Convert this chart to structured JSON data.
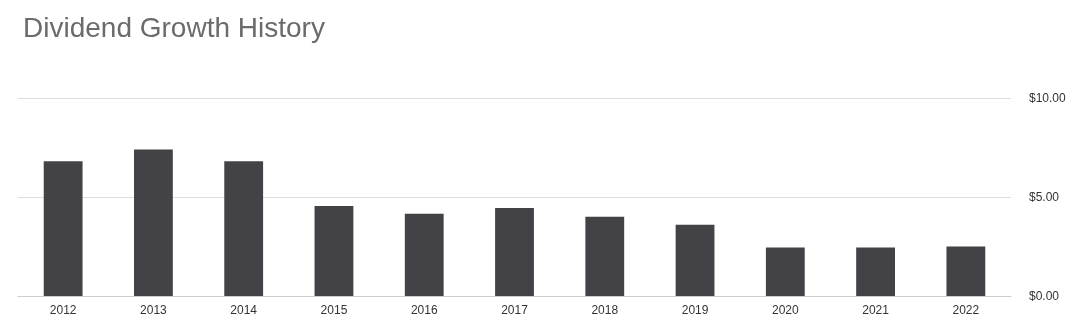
{
  "chart_data": {
    "type": "bar",
    "title": "Dividend Growth History",
    "categories": [
      "2012",
      "2013",
      "2014",
      "2015",
      "2016",
      "2017",
      "2018",
      "2019",
      "2020",
      "2021",
      "2022"
    ],
    "values": [
      6.8,
      7.4,
      6.8,
      4.55,
      4.15,
      4.45,
      4.0,
      3.6,
      2.45,
      2.45,
      2.5
    ],
    "color": "#434246",
    "ylim": [
      0,
      10
    ],
    "yticks": [
      {
        "value": 0,
        "label": "$0.00"
      },
      {
        "value": 5,
        "label": "$5.00"
      },
      {
        "value": 10,
        "label": "$10.00"
      }
    ],
    "grid": "y"
  }
}
